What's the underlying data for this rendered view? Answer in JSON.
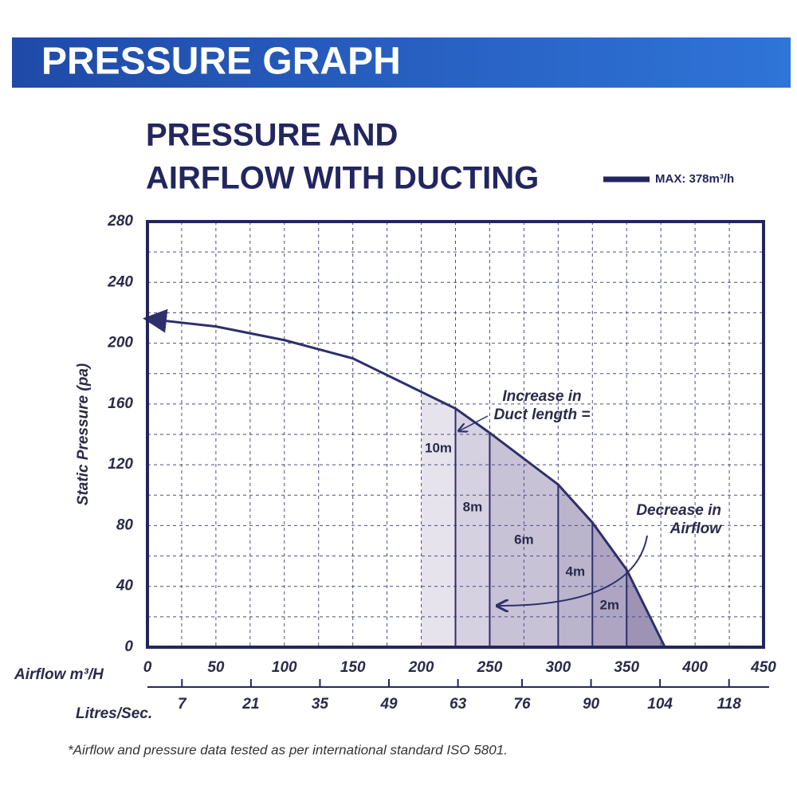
{
  "header": "PRESSURE GRAPH",
  "chart_data": {
    "type": "line",
    "title_lines": [
      "PRESSURE AND",
      "AIRFLOW WITH DUCTING"
    ],
    "y_label": "Static Pressure (pa)",
    "x_label": "Airflow m³/H",
    "x2_label": "Litres/Sec.",
    "xlim": [
      0,
      450
    ],
    "xticks": [
      0,
      50,
      100,
      150,
      200,
      250,
      300,
      350,
      400,
      450
    ],
    "xminor": [
      25,
      75,
      125,
      175,
      225,
      275,
      325,
      375,
      425
    ],
    "ylim": [
      0,
      280
    ],
    "yticks": [
      0,
      40,
      80,
      120,
      160,
      200,
      240,
      280
    ],
    "yminor": [
      20,
      60,
      100,
      140,
      180,
      220,
      260
    ],
    "x2lim": [
      0,
      125
    ],
    "x2ticks": [
      7,
      21,
      35,
      49,
      63,
      76,
      90,
      104,
      118
    ],
    "grid": true,
    "series": [
      {
        "name": "MAX: 378m³/h",
        "color": "#2e2f6b",
        "x": [
          0,
          50,
          100,
          150,
          200,
          225,
          250,
          300,
          325,
          350,
          378
        ],
        "values": [
          216,
          211,
          202,
          190,
          168,
          157,
          141,
          107,
          82,
          51,
          0
        ]
      }
    ],
    "duct_bands": [
      {
        "label": "10m",
        "from": 200,
        "to": 225,
        "color": "#e6e3ec"
      },
      {
        "label": "8m",
        "from": 225,
        "to": 250,
        "color": "#d6d1e0"
      },
      {
        "label": "6m",
        "from": 250,
        "to": 300,
        "color": "#c8c2d7"
      },
      {
        "label": "4m",
        "from": 300,
        "to": 325,
        "color": "#bbb4cd"
      },
      {
        "label": "2m",
        "from": 325,
        "to": 350,
        "color": "#ada5c2"
      },
      {
        "from": 350,
        "to": 378,
        "color": "#9d94b5"
      }
    ],
    "annotations": [
      {
        "lines": [
          "Increase in",
          "Duct length ="
        ]
      },
      {
        "lines": [
          "Decrease in",
          "Airflow"
        ]
      }
    ]
  },
  "footnote": "*Airflow and pressure data tested as per international standard ISO 5801."
}
